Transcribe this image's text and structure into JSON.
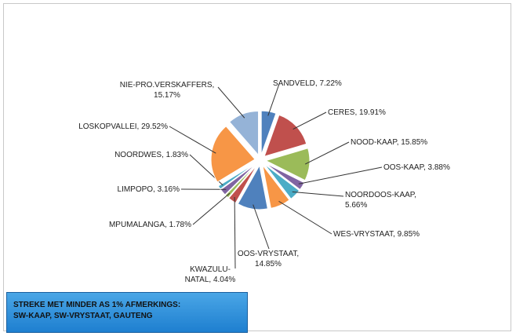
{
  "chart_data": {
    "type": "pie",
    "values": [
      7.22,
      19.91,
      15.85,
      3.88,
      5.66,
      9.85,
      14.85,
      4.04,
      1.78,
      3.16,
      1.83,
      29.52,
      15.17
    ],
    "value_labels": [
      "SANDVELD, 7.22%",
      "CERES, 19.91%",
      "NOOD-KAAP, 15.85%",
      "OOS-KAAP, 3.88%",
      "NOORDOOS-KAAP, 5.66%",
      "WES-VRYSTAAT, 9.85%",
      "OOS-VRYSTAAT, 14.85%",
      "KWAZULU-NATAL, 4.04%",
      "MPUMALANGA, 1.78%",
      "LIMPOPO, 3.16%",
      "NOORDWES, 1.83%",
      "LOSKOPVALLEI, 29.52%",
      "NIE-PRO.VERSKAFFERS, 15.17%"
    ],
    "colors": [
      "#4f81bd",
      "#c0504d",
      "#9bbb59",
      "#8064a2",
      "#4bacc6",
      "#f79646",
      "#4f81bd",
      "#c0504d",
      "#9bbb59",
      "#8064a2",
      "#4bacc6",
      "#f79646",
      "#95b3d7"
    ],
    "annotation": [
      "STREKE MET  MINDER  AS 1% AFMERKINGS:",
      "SW-KAAP,  SW-VRYSTAAT, GAUTENG"
    ]
  }
}
